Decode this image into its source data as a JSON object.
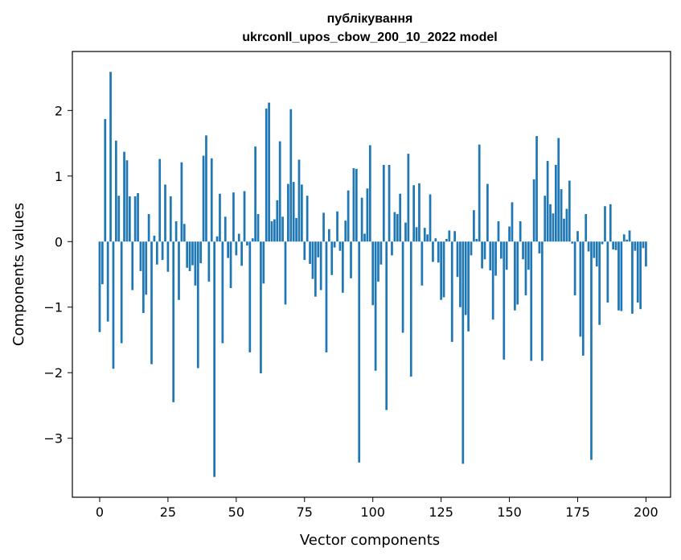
{
  "chart_data": {
    "type": "bar",
    "title_line1": "публікування",
    "title_line2": "ukrconll_upos_cbow_200_10_2022 model",
    "xlabel": "Vector components",
    "ylabel": "Components values",
    "xlim": [
      -10,
      209
    ],
    "ylim": [
      -3.9,
      2.9
    ],
    "xticks": [
      0,
      25,
      50,
      75,
      100,
      125,
      150,
      175,
      200
    ],
    "yticks": [
      -3,
      -2,
      -1,
      0,
      1,
      2
    ],
    "ytick_labels": [
      "−3",
      "−2",
      "−1",
      "0",
      "1",
      "2"
    ],
    "bar_color": "#1f77b4",
    "values": [
      -1.38,
      -0.65,
      1.87,
      -1.22,
      2.59,
      -1.94,
      1.54,
      0.7,
      -1.55,
      1.37,
      1.24,
      0.69,
      -0.74,
      0.69,
      0.74,
      -0.45,
      -1.09,
      -0.81,
      0.42,
      -1.87,
      0.09,
      -0.35,
      1.26,
      -0.28,
      0.87,
      -0.46,
      0.69,
      -2.45,
      0.31,
      -0.89,
      1.21,
      0.27,
      -0.4,
      -0.45,
      -0.36,
      -0.67,
      -1.93,
      -0.33,
      1.31,
      1.62,
      -0.61,
      1.27,
      -3.59,
      0.08,
      0.73,
      -1.55,
      0.38,
      -0.25,
      -0.71,
      0.75,
      -0.21,
      0.12,
      -0.37,
      0.77,
      -0.06,
      -1.69,
      0.05,
      1.45,
      0.42,
      -2.01,
      -0.64,
      2.03,
      2.12,
      0.31,
      0.34,
      0.63,
      1.53,
      0.38,
      -0.96,
      0.88,
      2.02,
      0.91,
      0.36,
      1.25,
      0.87,
      -0.28,
      0.7,
      -0.34,
      -0.57,
      -0.84,
      -0.24,
      -0.74,
      0.44,
      -1.69,
      0.19,
      -0.51,
      -0.09,
      0.46,
      -0.14,
      -0.78,
      0.32,
      0.78,
      -0.56,
      1.12,
      1.11,
      -3.37,
      0.67,
      0.12,
      0.81,
      1.47,
      -0.97,
      -1.97,
      -0.61,
      -0.35,
      1.17,
      -2.57,
      1.17,
      -0.21,
      0.45,
      0.42,
      0.73,
      -1.39,
      0.29,
      1.34,
      -2.06,
      0.86,
      0.22,
      0.89,
      -0.67,
      0.21,
      0.11,
      0.72,
      -0.31,
      0.05,
      -0.32,
      -0.89,
      -0.85,
      0.04,
      0.17,
      -1.53,
      0.16,
      -0.54,
      -1.0,
      -3.39,
      -1.12,
      -1.37,
      -0.21,
      0.48,
      0.04,
      1.48,
      -0.41,
      -0.27,
      0.88,
      -0.44,
      -1.19,
      -0.52,
      0.31,
      -0.26,
      -1.8,
      -0.43,
      0.23,
      0.6,
      -1.05,
      -0.96,
      0.31,
      -0.27,
      -0.82,
      -0.43,
      -1.82,
      0.95,
      1.61,
      -0.18,
      -1.82,
      0.7,
      1.23,
      0.57,
      0.43,
      1.17,
      1.58,
      0.8,
      0.35,
      0.5,
      0.93,
      -0.03,
      -0.82,
      0.16,
      -1.45,
      -1.74,
      0.42,
      -0.15,
      -3.33,
      -0.25,
      -0.38,
      -1.27,
      -0.04,
      0.54,
      -0.93,
      0.57,
      -0.12,
      -0.13,
      -1.05,
      -1.06,
      0.11,
      0.03,
      0.17,
      -1.1,
      -0.14,
      -0.93,
      -1.03,
      -0.1,
      -0.38
    ]
  }
}
